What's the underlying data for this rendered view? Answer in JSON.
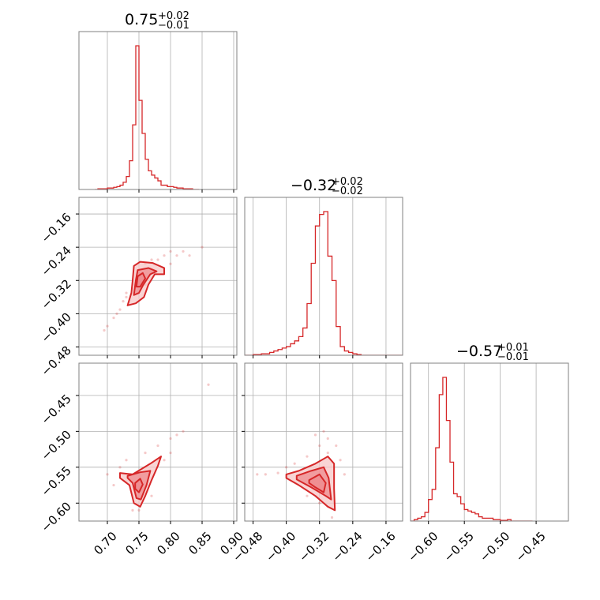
{
  "chart_data": [
    {
      "type": "histogram",
      "panel": "p1-marginal",
      "title_value": "0.75",
      "title_plus": "+0.02",
      "title_minus": "−0.01",
      "xlim": [
        0.655,
        0.905
      ],
      "xticks": [
        0.7,
        0.75,
        0.8,
        0.85,
        0.9
      ],
      "bins_x": [
        0.68,
        0.685,
        0.69,
        0.695,
        0.7,
        0.705,
        0.71,
        0.715,
        0.72,
        0.725,
        0.73,
        0.735,
        0.74,
        0.745,
        0.75,
        0.755,
        0.76,
        0.765,
        0.77,
        0.775,
        0.78,
        0.785,
        0.79,
        0.795,
        0.8,
        0.805,
        0.81,
        0.815,
        0.82,
        0.825,
        0.83,
        0.835,
        0.84
      ],
      "density": [
        0.0,
        0.005,
        0.005,
        0.005,
        0.01,
        0.01,
        0.015,
        0.02,
        0.03,
        0.05,
        0.09,
        0.2,
        0.45,
        1.0,
        0.62,
        0.39,
        0.21,
        0.13,
        0.1,
        0.08,
        0.06,
        0.03,
        0.03,
        0.02,
        0.02,
        0.015,
        0.01,
        0.01,
        0.005,
        0.005,
        0.005,
        0.0,
        0.0
      ]
    },
    {
      "type": "histogram",
      "panel": "p2-marginal",
      "title_value": "−0.32",
      "title_plus": "+0.02",
      "title_minus": "−0.02",
      "xlim": [
        -0.5,
        -0.12
      ],
      "xticks": [
        -0.48,
        -0.4,
        -0.32,
        -0.24,
        -0.16
      ],
      "bins_x": [
        -0.5,
        -0.49,
        -0.48,
        -0.47,
        -0.46,
        -0.45,
        -0.44,
        -0.43,
        -0.42,
        -0.41,
        -0.4,
        -0.39,
        -0.38,
        -0.37,
        -0.36,
        -0.35,
        -0.34,
        -0.33,
        -0.32,
        -0.31,
        -0.3,
        -0.29,
        -0.28,
        -0.27,
        -0.26,
        -0.25,
        -0.24,
        -0.23,
        -0.22,
        -0.21,
        -0.2,
        -0.19,
        -0.18,
        -0.17,
        -0.16,
        -0.15,
        -0.14,
        -0.13
      ],
      "density": [
        0.0,
        0.0,
        0.005,
        0.005,
        0.01,
        0.01,
        0.02,
        0.03,
        0.04,
        0.05,
        0.06,
        0.08,
        0.1,
        0.13,
        0.19,
        0.36,
        0.64,
        0.9,
        0.98,
        1.0,
        0.69,
        0.52,
        0.2,
        0.06,
        0.03,
        0.02,
        0.01,
        0.005,
        0.0,
        0.0,
        0.0,
        0.0,
        0.0,
        0.0,
        0.0,
        0.0,
        0.0,
        0.0
      ]
    },
    {
      "type": "histogram",
      "panel": "p3-marginal",
      "title_value": "−0.57",
      "title_plus": "+0.01",
      "title_minus": "−0.01",
      "xlim": [
        -0.625,
        -0.405
      ],
      "xticks": [
        -0.6,
        -0.55,
        -0.5,
        -0.45
      ],
      "bins_x": [
        -0.625,
        -0.62,
        -0.615,
        -0.61,
        -0.605,
        -0.6,
        -0.595,
        -0.59,
        -0.585,
        -0.58,
        -0.575,
        -0.57,
        -0.565,
        -0.56,
        -0.555,
        -0.55,
        -0.545,
        -0.54,
        -0.535,
        -0.53,
        -0.525,
        -0.52,
        -0.515,
        -0.51,
        -0.505,
        -0.5,
        -0.495,
        -0.49,
        -0.485,
        -0.48,
        -0.475,
        -0.47,
        -0.465,
        -0.46
      ],
      "density": [
        0.0,
        0.01,
        0.02,
        0.03,
        0.06,
        0.15,
        0.22,
        0.51,
        0.88,
        1.0,
        0.7,
        0.41,
        0.19,
        0.17,
        0.12,
        0.08,
        0.07,
        0.06,
        0.05,
        0.03,
        0.02,
        0.02,
        0.02,
        0.01,
        0.01,
        0.005,
        0.005,
        0.01,
        0.0,
        0.0,
        0.0,
        0.0,
        0.0,
        0.0
      ]
    },
    {
      "type": "scatter",
      "panel": "p1-p2",
      "xlim": [
        0.655,
        0.905
      ],
      "ylim": [
        -0.5,
        -0.12
      ],
      "xticks": [
        0.7,
        0.75,
        0.8,
        0.85,
        0.9
      ],
      "yticks": [
        -0.16,
        -0.24,
        -0.32,
        -0.4,
        -0.48
      ],
      "contours": [
        [
          [
            0.732,
            -0.38
          ],
          [
            0.738,
            -0.35
          ],
          [
            0.74,
            -0.32
          ],
          [
            0.742,
            -0.285
          ],
          [
            0.752,
            -0.275
          ],
          [
            0.772,
            -0.278
          ],
          [
            0.79,
            -0.29
          ],
          [
            0.79,
            -0.305
          ],
          [
            0.775,
            -0.305
          ],
          [
            0.765,
            -0.33
          ],
          [
            0.758,
            -0.36
          ],
          [
            0.745,
            -0.375
          ],
          [
            0.732,
            -0.38
          ]
        ],
        [
          [
            0.742,
            -0.355
          ],
          [
            0.745,
            -0.32
          ],
          [
            0.748,
            -0.295
          ],
          [
            0.765,
            -0.29
          ],
          [
            0.778,
            -0.298
          ],
          [
            0.768,
            -0.305
          ],
          [
            0.757,
            -0.33
          ],
          [
            0.75,
            -0.35
          ],
          [
            0.742,
            -0.355
          ]
        ],
        [
          [
            0.746,
            -0.335
          ],
          [
            0.748,
            -0.31
          ],
          [
            0.756,
            -0.302
          ],
          [
            0.76,
            -0.315
          ],
          [
            0.752,
            -0.335
          ],
          [
            0.746,
            -0.335
          ]
        ]
      ],
      "points": [
        [
          0.7,
          -0.43
        ],
        [
          0.71,
          -0.41
        ],
        [
          0.715,
          -0.4
        ],
        [
          0.72,
          -0.39
        ],
        [
          0.725,
          -0.37
        ],
        [
          0.73,
          -0.35
        ],
        [
          0.74,
          -0.33
        ],
        [
          0.75,
          -0.3
        ],
        [
          0.76,
          -0.28
        ],
        [
          0.77,
          -0.27
        ],
        [
          0.78,
          -0.27
        ],
        [
          0.79,
          -0.26
        ],
        [
          0.8,
          -0.25
        ],
        [
          0.81,
          -0.26
        ],
        [
          0.82,
          -0.25
        ],
        [
          0.83,
          -0.26
        ],
        [
          0.85,
          -0.24
        ],
        [
          0.76,
          -0.33
        ],
        [
          0.77,
          -0.3
        ],
        [
          0.73,
          -0.36
        ],
        [
          0.695,
          -0.44
        ],
        [
          0.8,
          -0.28
        ]
      ]
    },
    {
      "type": "scatter",
      "panel": "p1-p3",
      "xlim": [
        0.655,
        0.905
      ],
      "ylim": [
        -0.625,
        -0.405
      ],
      "xticks": [
        0.7,
        0.75,
        0.8,
        0.85,
        0.9
      ],
      "yticks": [
        -0.45,
        -0.5,
        -0.55,
        -0.6
      ],
      "contours": [
        [
          [
            0.72,
            -0.558
          ],
          [
            0.74,
            -0.56
          ],
          [
            0.768,
            -0.545
          ],
          [
            0.785,
            -0.535
          ],
          [
            0.78,
            -0.548
          ],
          [
            0.77,
            -0.568
          ],
          [
            0.76,
            -0.59
          ],
          [
            0.752,
            -0.605
          ],
          [
            0.742,
            -0.6
          ],
          [
            0.735,
            -0.575
          ],
          [
            0.72,
            -0.565
          ],
          [
            0.72,
            -0.558
          ]
        ],
        [
          [
            0.732,
            -0.562
          ],
          [
            0.752,
            -0.557
          ],
          [
            0.768,
            -0.555
          ],
          [
            0.762,
            -0.575
          ],
          [
            0.753,
            -0.595
          ],
          [
            0.746,
            -0.593
          ],
          [
            0.74,
            -0.572
          ],
          [
            0.732,
            -0.565
          ],
          [
            0.732,
            -0.562
          ]
        ],
        [
          [
            0.744,
            -0.572
          ],
          [
            0.752,
            -0.566
          ],
          [
            0.756,
            -0.574
          ],
          [
            0.75,
            -0.585
          ],
          [
            0.744,
            -0.58
          ],
          [
            0.744,
            -0.572
          ]
        ]
      ],
      "points": [
        [
          0.7,
          -0.56
        ],
        [
          0.71,
          -0.575
        ],
        [
          0.72,
          -0.55
        ],
        [
          0.73,
          -0.54
        ],
        [
          0.76,
          -0.53
        ],
        [
          0.78,
          -0.52
        ],
        [
          0.8,
          -0.51
        ],
        [
          0.81,
          -0.505
        ],
        [
          0.82,
          -0.5
        ],
        [
          0.79,
          -0.54
        ],
        [
          0.74,
          -0.61
        ],
        [
          0.75,
          -0.61
        ],
        [
          0.77,
          -0.59
        ],
        [
          0.8,
          -0.53
        ],
        [
          0.86,
          -0.435
        ]
      ]
    },
    {
      "type": "scatter",
      "panel": "p2-p3",
      "xlim": [
        -0.5,
        -0.12
      ],
      "ylim": [
        -0.625,
        -0.405
      ],
      "xticks": [
        -0.48,
        -0.4,
        -0.32,
        -0.24,
        -0.16
      ],
      "yticks": [
        -0.45,
        -0.5,
        -0.55,
        -0.6
      ],
      "contours": [
        [
          [
            -0.4,
            -0.56
          ],
          [
            -0.37,
            -0.555
          ],
          [
            -0.33,
            -0.545
          ],
          [
            -0.3,
            -0.535
          ],
          [
            -0.285,
            -0.545
          ],
          [
            -0.285,
            -0.58
          ],
          [
            -0.283,
            -0.61
          ],
          [
            -0.3,
            -0.605
          ],
          [
            -0.33,
            -0.59
          ],
          [
            -0.37,
            -0.575
          ],
          [
            -0.4,
            -0.565
          ],
          [
            -0.4,
            -0.56
          ]
        ],
        [
          [
            -0.375,
            -0.562
          ],
          [
            -0.34,
            -0.555
          ],
          [
            -0.31,
            -0.55
          ],
          [
            -0.298,
            -0.565
          ],
          [
            -0.292,
            -0.595
          ],
          [
            -0.305,
            -0.59
          ],
          [
            -0.34,
            -0.578
          ],
          [
            -0.375,
            -0.567
          ],
          [
            -0.375,
            -0.562
          ]
        ],
        [
          [
            -0.345,
            -0.568
          ],
          [
            -0.32,
            -0.56
          ],
          [
            -0.305,
            -0.572
          ],
          [
            -0.31,
            -0.585
          ],
          [
            -0.33,
            -0.578
          ],
          [
            -0.345,
            -0.572
          ],
          [
            -0.345,
            -0.568
          ]
        ]
      ],
      "points": [
        [
          -0.47,
          -0.56
        ],
        [
          -0.45,
          -0.56
        ],
        [
          -0.42,
          -0.558
        ],
        [
          -0.4,
          -0.55
        ],
        [
          -0.38,
          -0.545
        ],
        [
          -0.35,
          -0.535
        ],
        [
          -0.32,
          -0.52
        ],
        [
          -0.3,
          -0.51
        ],
        [
          -0.3,
          -0.53
        ],
        [
          -0.28,
          -0.52
        ],
        [
          -0.27,
          -0.54
        ],
        [
          -0.26,
          -0.56
        ],
        [
          -0.32,
          -0.6
        ],
        [
          -0.35,
          -0.59
        ],
        [
          -0.29,
          -0.62
        ],
        [
          -0.31,
          -0.5
        ],
        [
          -0.33,
          -0.505
        ]
      ]
    }
  ],
  "colors": {
    "series": "#d62728",
    "fill_outer": "#f7c5c6",
    "fill_inner": "#ee8b8e",
    "grid": "#b0b0b0",
    "frame": "#808080"
  }
}
